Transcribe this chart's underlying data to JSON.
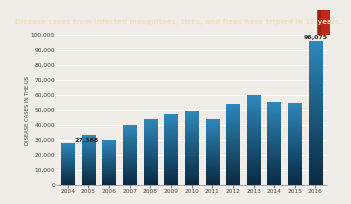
{
  "title": "Disease cases from infected mosquitoes, ticks, and fleas have tripled in 13 years.",
  "title_bg_color": "#c0281a",
  "title_text_color": "#f0dfc0",
  "ylabel": "DISEASE CASES IN THE US",
  "years": [
    2004,
    2005,
    2006,
    2007,
    2008,
    2009,
    2010,
    2011,
    2012,
    2013,
    2014,
    2015,
    2016
  ],
  "values": [
    27388,
    33000,
    29500,
    40000,
    43500,
    47000,
    49000,
    44000,
    54000,
    60000,
    55000,
    54500,
    96075
  ],
  "bar_color_top": "#2e88bb",
  "bar_color_bottom": "#0a2a42",
  "first_label": "27,388",
  "last_label": "96,075",
  "bg_color": "#d8d0c0",
  "plot_bg_color": "#f0ede8",
  "ylim": [
    0,
    100000
  ],
  "yticks": [
    0,
    10000,
    20000,
    30000,
    40000,
    50000,
    60000,
    70000,
    80000,
    90000,
    100000
  ],
  "grid_color": "#ffffff",
  "bar_width": 0.65
}
